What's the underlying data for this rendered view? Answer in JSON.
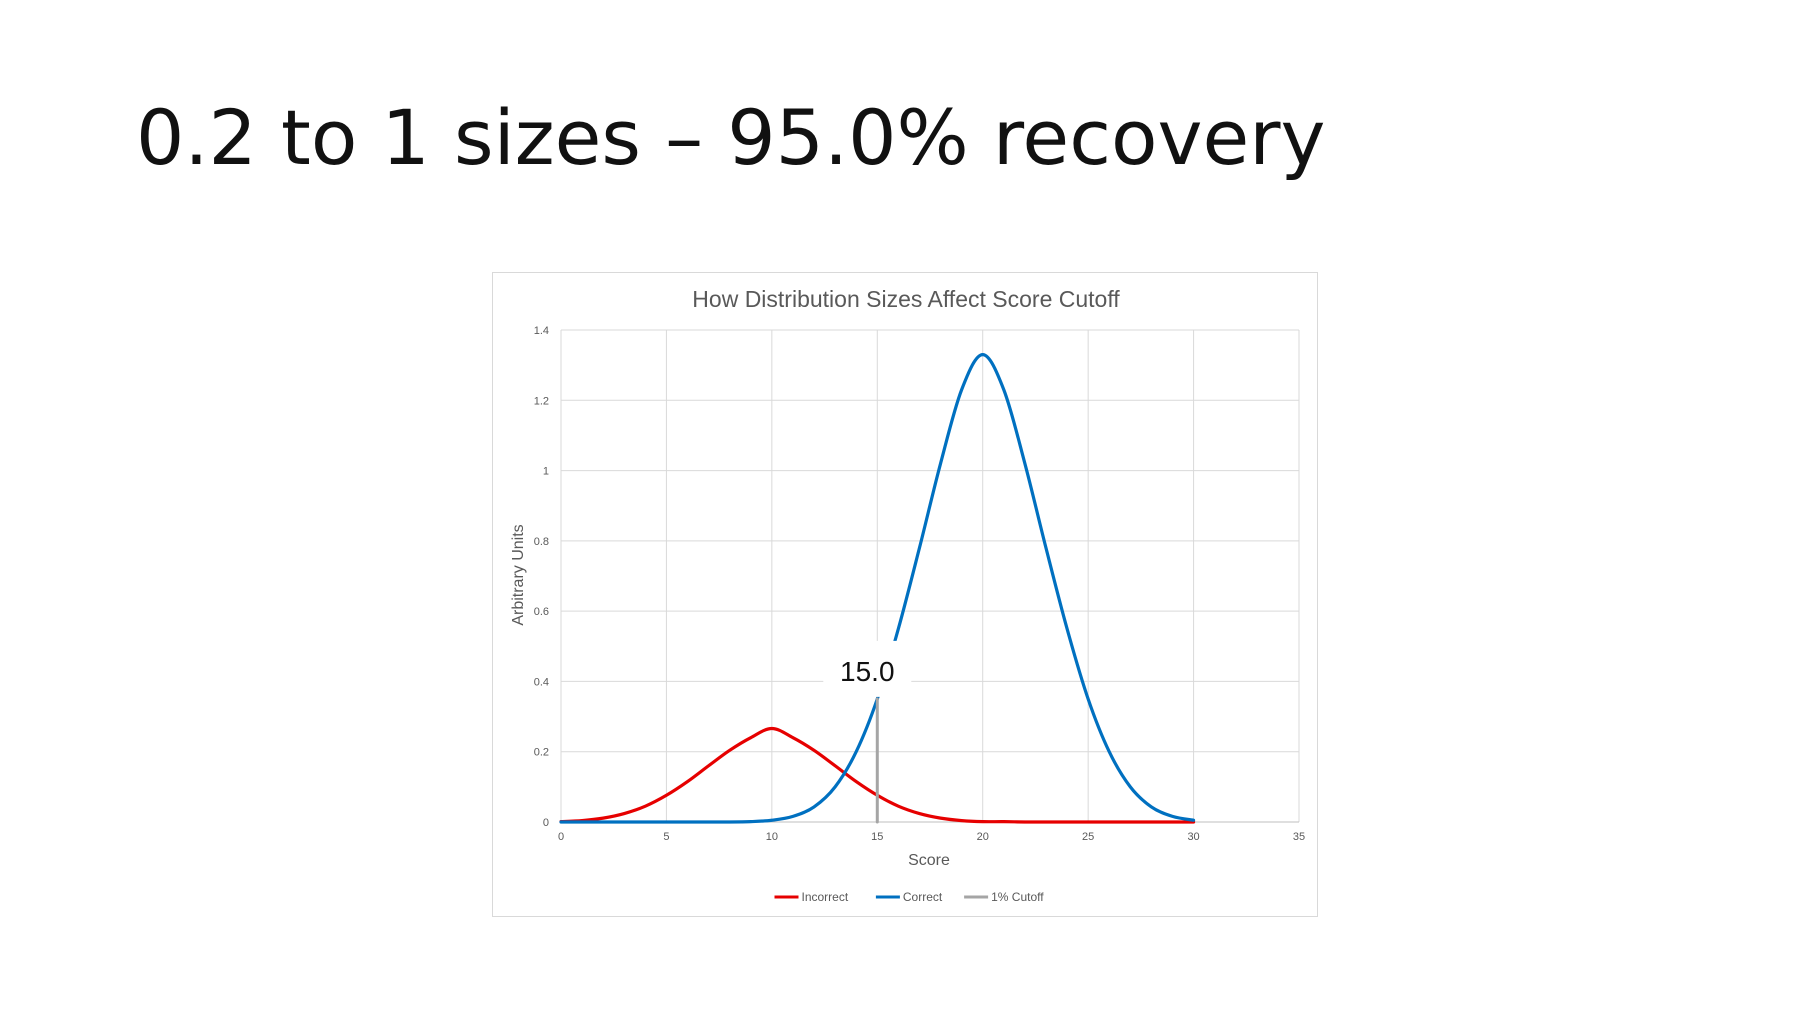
{
  "slide": {
    "title": "0.2 to 1 sizes – 95.0% recovery"
  },
  "chart_data": {
    "type": "line",
    "title": "How Distribution Sizes Affect Score Cutoff",
    "xlabel": "Score",
    "ylabel": "Arbitrary Units",
    "xlim": [
      0,
      35
    ],
    "ylim": [
      0,
      1.4
    ],
    "x_ticks": [
      0,
      5,
      10,
      15,
      20,
      25,
      30,
      35
    ],
    "y_ticks": [
      0,
      0.2,
      0.4,
      0.6,
      0.8,
      1,
      1.2,
      1.4
    ],
    "x_tick_labels": [
      "0",
      "5",
      "10",
      "15",
      "20",
      "25",
      "30",
      "35"
    ],
    "y_tick_labels": [
      "0",
      "0.2",
      "0.4",
      "0.6",
      "0.8",
      "1",
      "1.2",
      "1.4"
    ],
    "grid": true,
    "legend_position": "bottom",
    "series": [
      {
        "name": "Incorrect",
        "color": "#e60000",
        "x": [
          0,
          1,
          2,
          3,
          4,
          5,
          6,
          7,
          8,
          9,
          10,
          11,
          12,
          13,
          14,
          15,
          16,
          17,
          18,
          19,
          20,
          21,
          22,
          23,
          24,
          25,
          26,
          27,
          28,
          29,
          30
        ],
        "y": [
          0.001,
          0.004,
          0.011,
          0.024,
          0.045,
          0.076,
          0.115,
          0.16,
          0.204,
          0.24,
          0.266,
          0.24,
          0.204,
          0.16,
          0.115,
          0.076,
          0.045,
          0.024,
          0.011,
          0.004,
          0.001,
          0.001,
          0,
          0,
          0,
          0,
          0,
          0,
          0,
          0,
          0
        ]
      },
      {
        "name": "Correct",
        "color": "#0070c0",
        "x": [
          0,
          5,
          8,
          9,
          10,
          11,
          12,
          13,
          14,
          15,
          16,
          17,
          18,
          19,
          20,
          21,
          22,
          23,
          24,
          25,
          26,
          27,
          28,
          29,
          30
        ],
        "y": [
          0,
          0,
          0,
          0.001,
          0.005,
          0.016,
          0.043,
          0.1,
          0.2,
          0.35,
          0.55,
          0.78,
          1.02,
          1.23,
          1.33,
          1.23,
          1.02,
          0.78,
          0.55,
          0.35,
          0.2,
          0.1,
          0.043,
          0.016,
          0.005
        ]
      },
      {
        "name": "1% Cutoff",
        "color": "#a5a5a5",
        "x": [
          15,
          15
        ],
        "y": [
          0,
          0.35
        ]
      }
    ],
    "annotations": [
      {
        "text": "15.0",
        "x": 15,
        "y": 0.43
      }
    ]
  }
}
